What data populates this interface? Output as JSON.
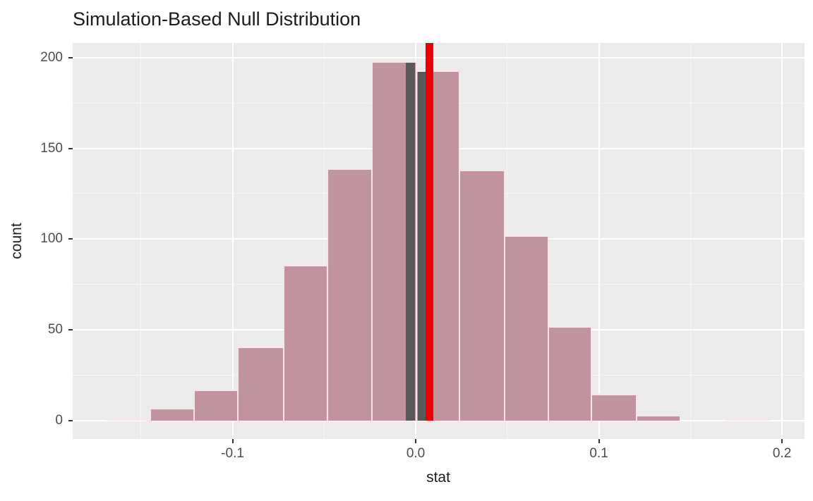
{
  "chart_data": {
    "type": "bar",
    "subtype": "histogram",
    "title": "Simulation-Based Null Distribution",
    "xlabel": "stat",
    "ylabel": "count",
    "xlim": [
      -0.1873,
      0.2123
    ],
    "ylim": [
      -10,
      208
    ],
    "grid": true,
    "legend": false,
    "x_ticks": [
      {
        "value": -0.1,
        "label": "-0.1"
      },
      {
        "value": 0.0,
        "label": "0.0"
      },
      {
        "value": 0.1,
        "label": "0.1"
      },
      {
        "value": 0.2,
        "label": "0.2"
      }
    ],
    "x_minor_ticks": [
      -0.15,
      -0.05,
      0.05,
      0.15
    ],
    "y_ticks": [
      {
        "value": 0,
        "label": "0"
      },
      {
        "value": 50,
        "label": "50"
      },
      {
        "value": 100,
        "label": "100"
      },
      {
        "value": 150,
        "label": "150"
      },
      {
        "value": 200,
        "label": "200"
      }
    ],
    "y_minor_ticks": [
      25,
      75,
      125,
      175
    ],
    "bins": [
      {
        "left": -0.169,
        "right": -0.145,
        "count": 1
      },
      {
        "left": -0.145,
        "right": -0.121,
        "count": 7
      },
      {
        "left": -0.121,
        "right": -0.097,
        "count": 17
      },
      {
        "left": -0.097,
        "right": -0.072,
        "count": 41
      },
      {
        "left": -0.072,
        "right": -0.048,
        "count": 86
      },
      {
        "left": -0.048,
        "right": -0.024,
        "count": 139
      },
      {
        "left": -0.024,
        "right": 0.0005,
        "count": 198
      },
      {
        "left": 0.0005,
        "right": 0.024,
        "count": 193
      },
      {
        "left": 0.024,
        "right": 0.0485,
        "count": 138
      },
      {
        "left": 0.0485,
        "right": 0.0725,
        "count": 102
      },
      {
        "left": 0.0725,
        "right": 0.096,
        "count": 52
      },
      {
        "left": 0.096,
        "right": 0.1205,
        "count": 15
      },
      {
        "left": 0.1205,
        "right": 0.1445,
        "count": 3
      },
      {
        "left": 0.1445,
        "right": 0.169,
        "count": 0
      },
      {
        "left": 0.169,
        "right": 0.1935,
        "count": 1
      }
    ],
    "overlay_bins": [
      {
        "left": -0.0056,
        "right": -0.0004,
        "count": 197
      },
      {
        "left": 0.001,
        "right": 0.006,
        "count": 192
      }
    ],
    "observed_stat": {
      "x": 0.0075
    },
    "colors": {
      "bar_fill": "#C0939E",
      "bar_outline": "#FFE3E8",
      "overlay_fill": "#595959",
      "observed_line": "#EB0000",
      "panel_bg": "#EBEBEB",
      "grid": "#FFFFFF",
      "tick_mark": "#333333",
      "tick_label": "#4D4D4D",
      "axis_title": "#1C1C1C",
      "title": "#1C1C1C"
    }
  }
}
